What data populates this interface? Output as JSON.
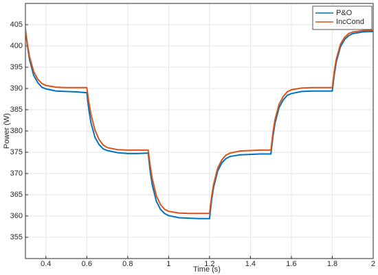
{
  "chart_data": {
    "type": "line",
    "xlabel": "Time (s)",
    "ylabel": "Power (W)",
    "x": [
      0.3,
      0.31,
      0.32,
      0.34,
      0.36,
      0.38,
      0.4,
      0.45,
      0.5,
      0.55,
      0.6,
      0.61,
      0.62,
      0.64,
      0.66,
      0.68,
      0.7,
      0.75,
      0.8,
      0.85,
      0.9,
      0.91,
      0.92,
      0.94,
      0.96,
      0.98,
      1.0,
      1.05,
      1.1,
      1.15,
      1.2,
      1.21,
      1.22,
      1.24,
      1.26,
      1.28,
      1.3,
      1.35,
      1.4,
      1.45,
      1.5,
      1.51,
      1.52,
      1.54,
      1.56,
      1.58,
      1.6,
      1.65,
      1.7,
      1.75,
      1.8,
      1.81,
      1.82,
      1.84,
      1.86,
      1.88,
      1.9,
      1.95,
      2.0
    ],
    "series": [
      {
        "name": "P&O",
        "color": "#0072bd",
        "values": [
          404,
          399.9,
          396.8,
          393.1,
          391.4,
          390.3,
          389.9,
          389.4,
          389.3,
          389.2,
          389.0,
          385.0,
          382.0,
          378.5,
          376.8,
          375.8,
          375.4,
          374.9,
          374.7,
          374.7,
          374.8,
          370.4,
          367.3,
          363.5,
          361.6,
          360.6,
          360.1,
          359.6,
          359.5,
          359.4,
          359.4,
          363.7,
          366.8,
          370.6,
          372.5,
          373.5,
          374.0,
          374.4,
          374.5,
          374.6,
          374.6,
          378.7,
          381.8,
          385.5,
          387.3,
          388.4,
          388.8,
          389.3,
          389.4,
          389.4,
          389.4,
          393.3,
          396.3,
          399.8,
          401.5,
          402.4,
          402.9,
          403.3,
          403.4
        ]
      },
      {
        "name": "IncCond",
        "color": "#d95319",
        "values": [
          403.8,
          400.3,
          397.5,
          394.0,
          392.2,
          391.2,
          390.7,
          390.3,
          390.2,
          390.2,
          390.2,
          386.8,
          384.0,
          380.2,
          378.0,
          376.7,
          376.1,
          375.6,
          375.5,
          375.5,
          375.5,
          371.8,
          368.8,
          364.8,
          362.7,
          361.6,
          361.1,
          360.7,
          360.6,
          360.6,
          360.6,
          364.5,
          367.5,
          371.3,
          373.2,
          374.3,
          374.8,
          375.3,
          375.4,
          375.5,
          375.5,
          379.6,
          382.7,
          386.3,
          388.1,
          389.2,
          389.7,
          390.1,
          390.2,
          390.2,
          390.2,
          394.1,
          397.0,
          400.4,
          402.0,
          402.9,
          403.3,
          403.6,
          403.7
        ]
      }
    ],
    "xlim": [
      0.3,
      2
    ],
    "xticks": [
      0.4,
      0.6,
      0.8,
      1,
      1.2,
      1.4,
      1.6,
      1.8,
      2
    ],
    "ylim": [
      350,
      410
    ],
    "yticks": [
      355,
      360,
      365,
      370,
      375,
      380,
      385,
      390,
      395,
      400,
      405
    ],
    "grid": true,
    "legend": "upper right"
  }
}
